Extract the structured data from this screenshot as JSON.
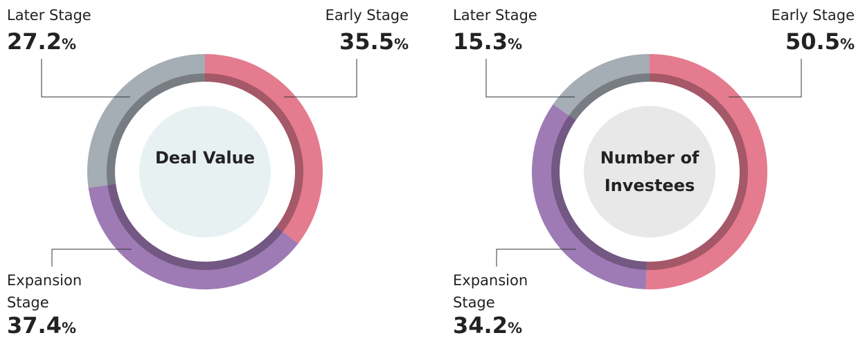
{
  "chart_data": [
    {
      "type": "donut",
      "title": "Deal Value",
      "center_color": "#e7f1f2",
      "categories": [
        "Early Stage",
        "Expansion Stage",
        "Later Stage"
      ],
      "values": [
        35.5,
        37.4,
        27.2
      ],
      "unit": "%",
      "colors": [
        "#e57b8f",
        "#9e7bb5",
        "#a5adb5"
      ]
    },
    {
      "type": "donut",
      "title": "Number of Investees",
      "center_color": "#e8e8e9",
      "categories": [
        "Early Stage",
        "Expansion Stage",
        "Later Stage"
      ],
      "values": [
        50.5,
        34.2,
        15.3
      ],
      "unit": "%",
      "colors": [
        "#e57b8f",
        "#9e7bb5",
        "#a5adb5"
      ]
    }
  ]
}
